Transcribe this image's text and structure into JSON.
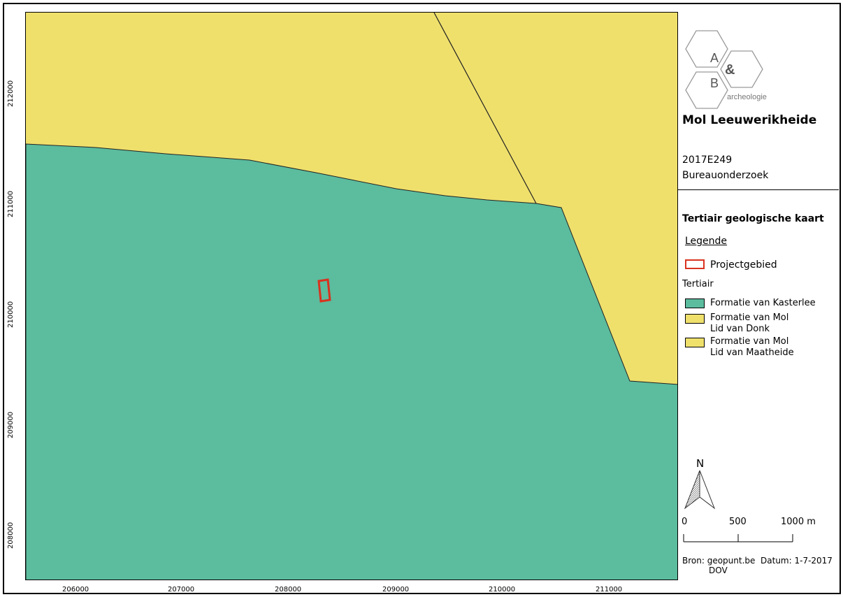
{
  "map": {
    "x_ticks": [
      "206000",
      "207000",
      "208000",
      "209000",
      "210000",
      "211000"
    ],
    "y_ticks": [
      "212000",
      "211000",
      "210000",
      "209000",
      "208000"
    ],
    "colors": {
      "kasterlee": "#5bbc9e",
      "mol": "#efe06c",
      "project_outline": "#d9321f",
      "boundary": "#222222"
    }
  },
  "logo": {
    "letter_a": "A",
    "ampersand": "&",
    "letter_b": "B",
    "word": "archeologie"
  },
  "panel": {
    "title": "Mol Leeuwerikheide",
    "code": "2017E249",
    "type": "Bureauonderzoek",
    "map_title": "Tertiair geologische kaart"
  },
  "legend": {
    "heading": "Legende",
    "project_label": "Projectgebied",
    "group_label": "Tertiair",
    "items": [
      {
        "line1": "Formatie van Kasterlee",
        "line2": ""
      },
      {
        "line1": "Formatie van Mol",
        "line2": "Lid van Donk"
      },
      {
        "line1": "Formatie van Mol",
        "line2": "Lid van Maatheide"
      }
    ]
  },
  "north_arrow": {
    "label": "N",
    "icon": "north-arrow-icon"
  },
  "scalebar": {
    "labels": [
      "0",
      "500",
      "1000 m"
    ]
  },
  "source": {
    "line1": "Bron: geopunt.be  Datum: 1-7-2017",
    "line2": "DOV"
  }
}
